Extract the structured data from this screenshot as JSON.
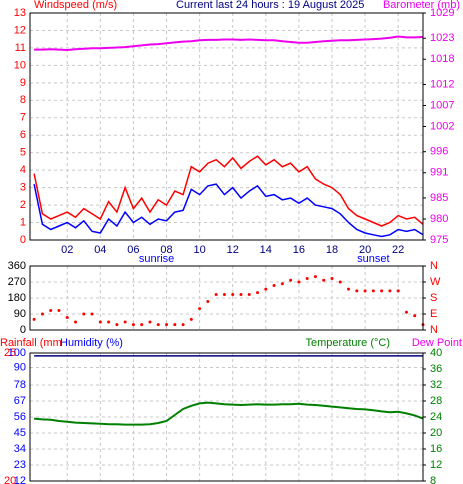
{
  "chart_data": [
    {
      "type": "line",
      "title": "Current last 24 hours : 19 August 2025",
      "y_label": "Windspeed (m/s)",
      "y2_label": "Barometer (mb)",
      "x": [
        0,
        0.5,
        1,
        1.5,
        2,
        2.5,
        3,
        3.5,
        4,
        4.5,
        5,
        5.5,
        6,
        6.5,
        7,
        7.5,
        8,
        8.5,
        9,
        9.5,
        10,
        10.5,
        11,
        11.5,
        12,
        12.5,
        13,
        13.5,
        14,
        14.5,
        15,
        15.5,
        16,
        16.5,
        17,
        17.5,
        18,
        18.5,
        19,
        19.5,
        20,
        20.5,
        21,
        21.5,
        22,
        22.5,
        23,
        23.5
      ],
      "xlim": [
        -0.25,
        23.5
      ],
      "xticks": [
        {
          "value": 2,
          "label": "02"
        },
        {
          "value": 4,
          "label": "04"
        },
        {
          "value": 6,
          "label": "06"
        },
        {
          "value": 8,
          "label": "08"
        },
        10,
        12,
        14,
        16,
        18,
        20,
        22
      ],
      "ylim": [
        0,
        13
      ],
      "yticks": [
        0,
        1,
        2,
        3,
        4,
        5,
        6,
        7,
        8,
        9,
        10,
        11,
        12,
        13
      ],
      "y2lim": [
        975,
        1029
      ],
      "y2ticks": [
        975,
        980,
        985,
        991,
        996,
        1002,
        1007,
        1012,
        1018,
        1023,
        1029
      ],
      "grid": true,
      "annotations": [
        {
          "text": "sunrise",
          "x": 7.4
        },
        {
          "text": "sunset",
          "x": 20.5
        }
      ],
      "series": [
        {
          "color": "#ff0000",
          "values": [
            3.8,
            1.5,
            1.2,
            1.4,
            1.6,
            1.3,
            1.8,
            1.5,
            1.2,
            2.2,
            1.6,
            3.0,
            1.8,
            2.4,
            1.6,
            2.3,
            2.0,
            2.8,
            2.6,
            4.2,
            3.9,
            4.4,
            4.6,
            4.2,
            4.7,
            4.1,
            4.5,
            4.8,
            4.3,
            4.6,
            4.2,
            4.4,
            3.9,
            4.2,
            3.5,
            3.2,
            3.0,
            2.6,
            1.8,
            1.4,
            1.2,
            1.0,
            0.8,
            1.0,
            1.4,
            1.2,
            1.3,
            0.9
          ]
        },
        {
          "color": "#0000ff",
          "values": [
            3.2,
            0.9,
            0.6,
            0.8,
            1.0,
            0.7,
            1.1,
            0.5,
            0.4,
            1.2,
            0.8,
            1.6,
            1.0,
            1.3,
            0.9,
            1.2,
            1.1,
            1.6,
            1.7,
            2.9,
            2.6,
            3.1,
            3.2,
            2.6,
            3.0,
            2.4,
            2.8,
            3.1,
            2.5,
            2.6,
            2.3,
            2.4,
            2.1,
            2.4,
            2.0,
            1.9,
            1.8,
            1.5,
            1.0,
            0.6,
            0.4,
            0.3,
            0.2,
            0.3,
            0.6,
            0.5,
            0.6,
            0.3
          ]
        },
        {
          "color": "#ee00ee",
          "axis": "y2",
          "values": [
            1020.3,
            1020.3,
            1020.4,
            1020.3,
            1020.2,
            1020.4,
            1020.5,
            1020.6,
            1020.6,
            1020.7,
            1020.8,
            1020.9,
            1021.1,
            1021.3,
            1021.5,
            1021.6,
            1021.8,
            1022.0,
            1022.2,
            1022.3,
            1022.5,
            1022.6,
            1022.6,
            1022.7,
            1022.7,
            1022.6,
            1022.7,
            1022.6,
            1022.5,
            1022.5,
            1022.3,
            1022.1,
            1021.9,
            1021.9,
            1022.1,
            1022.3,
            1022.4,
            1022.5,
            1022.5,
            1022.6,
            1022.7,
            1022.8,
            1022.9,
            1023.1,
            1023.4,
            1023.2,
            1023.2,
            1023.3
          ]
        }
      ]
    },
    {
      "type": "scatter",
      "x": [
        0,
        0.5,
        1,
        1.5,
        2,
        2.5,
        3,
        3.5,
        4,
        4.5,
        5,
        5.5,
        6,
        6.5,
        7,
        7.5,
        8,
        8.5,
        9,
        9.5,
        10,
        10.5,
        11,
        11.5,
        12,
        12.5,
        13,
        13.5,
        14,
        14.5,
        15,
        15.5,
        16,
        16.5,
        17,
        17.5,
        18,
        18.5,
        19,
        19.5,
        20,
        20.5,
        21,
        21.5,
        22,
        22.5,
        23,
        23.5
      ],
      "xlim": [
        -0.25,
        23.5
      ],
      "xticks": [
        {
          "value": 2,
          "label": "02"
        },
        {
          "value": 4,
          "label": "04"
        },
        {
          "value": 6,
          "label": "06"
        },
        {
          "value": 8,
          "label": "08"
        },
        10,
        12,
        14,
        16,
        18,
        20,
        22
      ],
      "ylim": [
        0,
        360
      ],
      "yticks": [
        0,
        90,
        180,
        270,
        360
      ],
      "y2lim": [
        0,
        360
      ],
      "y2ticks": [
        {
          "value": 0,
          "label": "N"
        },
        {
          "value": 90,
          "label": "E"
        },
        {
          "value": 180,
          "label": "S"
        },
        {
          "value": 270,
          "label": "W"
        },
        {
          "value": 360,
          "label": "N"
        }
      ],
      "grid": true,
      "series": [
        {
          "color": "#ff0000",
          "values": [
            60,
            90,
            110,
            110,
            70,
            45,
            90,
            90,
            45,
            45,
            30,
            45,
            30,
            30,
            45,
            30,
            30,
            30,
            30,
            60,
            120,
            160,
            200,
            200,
            200,
            200,
            200,
            210,
            230,
            250,
            260,
            280,
            270,
            290,
            300,
            280,
            290,
            270,
            230,
            220,
            220,
            220,
            220,
            220,
            220,
            100,
            80,
            30
          ]
        }
      ]
    },
    {
      "type": "line",
      "rain_label": "Rainfall (mm",
      "dew_label": "Dew Point",
      "x": [
        0,
        0.5,
        1,
        1.5,
        2,
        2.5,
        3,
        3.5,
        4,
        4.5,
        5,
        5.5,
        6,
        6.5,
        7,
        7.5,
        8,
        8.5,
        9,
        9.5,
        10,
        10.5,
        11,
        11.5,
        12,
        12.5,
        13,
        13.5,
        14,
        14.5,
        15,
        15.5,
        16,
        16.5,
        17,
        17.5,
        18,
        18.5,
        19,
        19.5,
        20,
        20.5,
        21,
        21.5,
        22,
        22.5,
        23,
        23.5
      ],
      "xlim": [
        -0.25,
        23.5
      ],
      "xticks": [
        {
          "value": 2,
          "label": "02"
        },
        {
          "value": 4,
          "label": "04"
        },
        {
          "value": 6,
          "label": "06"
        },
        {
          "value": 8,
          "label": "08"
        },
        10,
        12,
        14,
        16,
        18,
        20,
        22
      ],
      "rain_ylim": [
        20,
        25
      ],
      "rain_yticks": [
        25,
        20
      ],
      "ylim": [
        12,
        100
      ],
      "yticks": [
        100,
        90,
        78,
        67,
        56,
        45,
        34,
        23,
        12
      ],
      "y2lim": [
        8,
        40
      ],
      "y2ticks": [
        40,
        36,
        32,
        28,
        24,
        20,
        16,
        12,
        8
      ],
      "grid": true,
      "series": [
        {
          "name": "Humidity (%)",
          "color": "#000080",
          "values": [
            98,
            98,
            98,
            98,
            98,
            98,
            98,
            98,
            98,
            98,
            98,
            98,
            98,
            98,
            98,
            98,
            98,
            98,
            98,
            98,
            98,
            98,
            98,
            98,
            98,
            98,
            98,
            98,
            98,
            98,
            98,
            98,
            98,
            98,
            98,
            98,
            98,
            98,
            98,
            98,
            98,
            98,
            98,
            98,
            98,
            98,
            98,
            98
          ]
        },
        {
          "name": "Temperature (°C)",
          "color": "#008000",
          "axis": "y2",
          "values": [
            23.6,
            23.4,
            23.3,
            23.0,
            22.8,
            22.6,
            22.5,
            22.4,
            22.3,
            22.2,
            22.2,
            22.1,
            22.1,
            22.1,
            22.2,
            22.5,
            23.0,
            24.5,
            26.0,
            26.8,
            27.4,
            27.6,
            27.4,
            27.2,
            27.1,
            27.0,
            27.1,
            27.2,
            27.1,
            27.1,
            27.2,
            27.2,
            27.3,
            27.1,
            27.0,
            26.8,
            26.6,
            26.4,
            26.2,
            26.0,
            25.9,
            25.7,
            25.4,
            25.2,
            25.3,
            24.9,
            24.4,
            23.6
          ]
        }
      ]
    }
  ]
}
